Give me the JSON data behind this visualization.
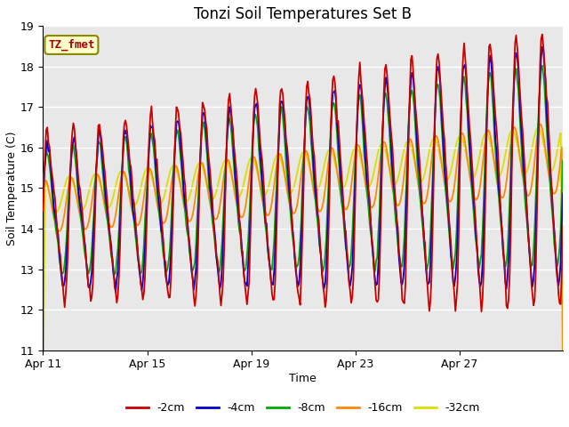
{
  "title": "Tonzi Soil Temperatures Set B",
  "xlabel": "Time",
  "ylabel": "Soil Temperature (C)",
  "ylim": [
    11.0,
    19.0
  ],
  "yticks": [
    11.0,
    12.0,
    13.0,
    14.0,
    15.0,
    16.0,
    17.0,
    18.0,
    19.0
  ],
  "xtick_labels": [
    "Apr 11",
    "Apr 15",
    "Apr 19",
    "Apr 23",
    "Apr 27"
  ],
  "xtick_positions": [
    0,
    96,
    192,
    288,
    384
  ],
  "bg_color": "#e0e0e0",
  "plot_bg": "#e8e8e8",
  "line_colors": {
    "-2cm": "#cc0000",
    "-4cm": "#0000cc",
    "-8cm": "#00aa00",
    "-16cm": "#ff8800",
    "-32cm": "#dddd00"
  },
  "legend_labels": [
    "-2cm",
    "-4cm",
    "-8cm",
    "-16cm",
    "-32cm"
  ],
  "annotation_text": "TZ_fmet",
  "annotation_color": "#aa0000",
  "annotation_bg": "#ffffcc",
  "n_points": 480
}
